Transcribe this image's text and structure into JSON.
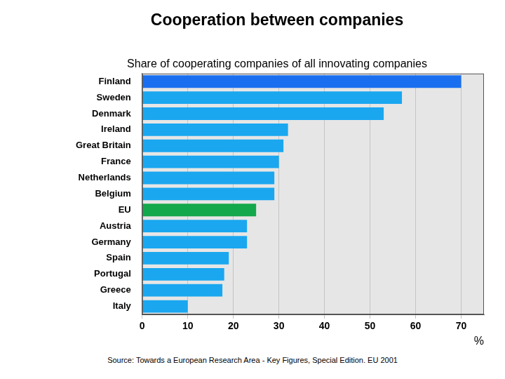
{
  "chart_data": {
    "type": "bar",
    "orientation": "horizontal",
    "title": "Cooperation between companies",
    "subtitle": "Share of cooperating companies of all innovating companies",
    "source": "Source: Towards a European Research Area - Key Figures, Special Edition. EU 2001",
    "xlabel": "%",
    "categories": [
      "Finland",
      "Sweden",
      "Denmark",
      "Ireland",
      "Great Britain",
      "France",
      "Netherlands",
      "Belgium",
      "EU",
      "Austria",
      "Germany",
      "Spain",
      "Portugal",
      "Greece",
      "Italy"
    ],
    "values": [
      70,
      57,
      53,
      32,
      31,
      30,
      29,
      29,
      25,
      23,
      23,
      19,
      18,
      17.6,
      10
    ],
    "colors": [
      "#1a6ff0",
      "#1aa7f0",
      "#1aa7f0",
      "#1aa7f0",
      "#1aa7f0",
      "#1aa7f0",
      "#1aa7f0",
      "#1aa7f0",
      "#13a84b",
      "#1aa7f0",
      "#1aa7f0",
      "#1aa7f0",
      "#1aa7f0",
      "#1aa7f0",
      "#1aa7f0"
    ],
    "xlim": [
      0,
      75
    ],
    "xticks": [
      0,
      10,
      20,
      30,
      40,
      50,
      60,
      70
    ],
    "grid": true
  }
}
